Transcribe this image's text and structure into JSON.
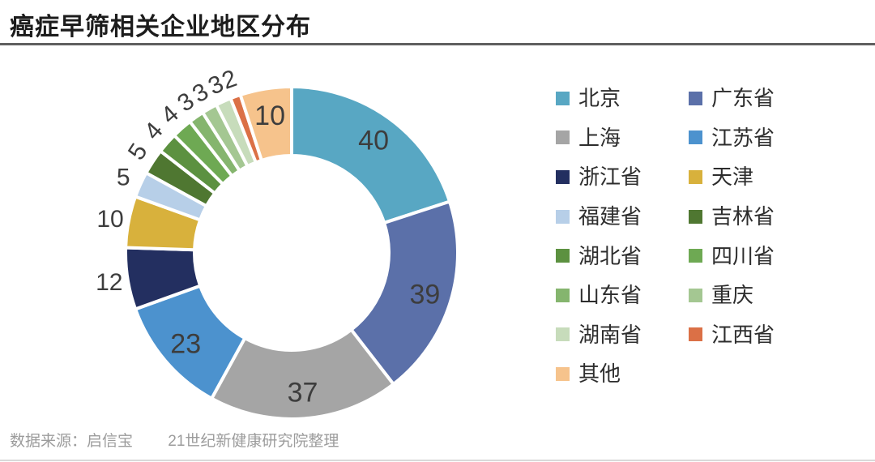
{
  "page": {
    "title": "癌症早筛相关企业地区分布"
  },
  "footer": {
    "source": "数据来源：启信宝",
    "credit": "21世纪新健康研究院整理"
  },
  "chart_data": {
    "type": "pie",
    "subtype": "donut",
    "title": "癌症早筛相关企业地区分布",
    "total": 200,
    "start_angle_deg": 0,
    "direction": "clockwise",
    "legend_position": "right",
    "legend_columns": 2,
    "slices": [
      {
        "label": "北京",
        "value": 40,
        "color": "#58A7C3",
        "label_outside": false
      },
      {
        "label": "广东省",
        "value": 39,
        "color": "#5B70A9",
        "label_outside": false
      },
      {
        "label": "上海",
        "value": 37,
        "color": "#A5A5A5",
        "label_outside": false
      },
      {
        "label": "江苏省",
        "value": 23,
        "color": "#4C92CE",
        "label_outside": false
      },
      {
        "label": "浙江省",
        "value": 12,
        "color": "#232F60",
        "label_outside": true
      },
      {
        "label": "天津",
        "value": 10,
        "color": "#D8B13C",
        "label_outside": true
      },
      {
        "label": "福建省",
        "value": 5,
        "color": "#B7CFE8",
        "label_outside": true
      },
      {
        "label": "吉林省",
        "value": 5,
        "color": "#4F7731",
        "label_outside": true
      },
      {
        "label": "湖北省",
        "value": 4,
        "color": "#5C9140",
        "label_outside": true
      },
      {
        "label": "四川省",
        "value": 4,
        "color": "#6EA953",
        "label_outside": true
      },
      {
        "label": "山东省",
        "value": 3,
        "color": "#85B56E",
        "label_outside": true
      },
      {
        "label": "重庆",
        "value": 3,
        "color": "#A4C792",
        "label_outside": true
      },
      {
        "label": "湖南省",
        "value": 3,
        "color": "#C7DCBB",
        "label_outside": true
      },
      {
        "label": "江西省",
        "value": 2,
        "color": "#DB7046",
        "label_outside": true
      },
      {
        "label": "其他",
        "value": 10,
        "color": "#F6C38C",
        "label_outside": false
      }
    ]
  }
}
